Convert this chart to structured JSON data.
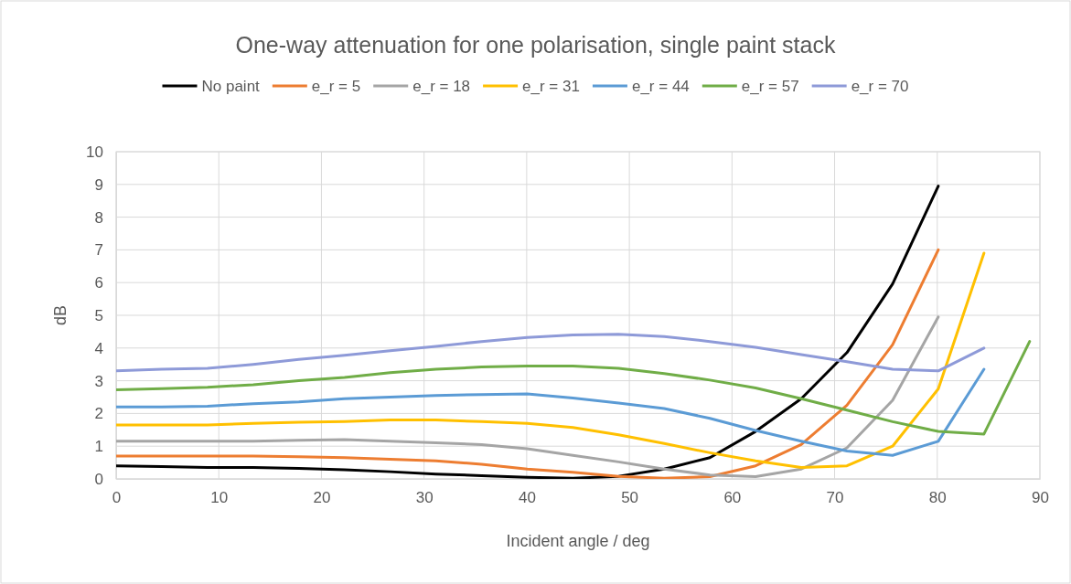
{
  "chart_data": {
    "type": "line",
    "title": "One-way attenuation for one polarisation, single paint stack",
    "xlabel": "Incident angle / deg",
    "ylabel": "dB",
    "x": [
      0,
      4.45,
      8.9,
      13.35,
      17.8,
      22.25,
      26.7,
      31.15,
      35.6,
      40.05,
      44.5,
      48.95,
      53.4,
      57.85,
      62.3,
      66.75,
      71.2,
      75.65,
      80.1,
      84.55,
      89
    ],
    "series": [
      {
        "name": "No paint",
        "color": "#000000",
        "values": [
          0.4,
          0.38,
          0.35,
          0.35,
          0.32,
          0.28,
          0.22,
          0.15,
          0.1,
          0.05,
          0.02,
          0.08,
          0.3,
          0.65,
          1.45,
          2.45,
          3.86,
          5.96,
          8.95,
          null,
          null
        ]
      },
      {
        "name": "e_r = 5",
        "color": "#ed7d31",
        "values": [
          0.7,
          0.7,
          0.7,
          0.7,
          0.68,
          0.65,
          0.6,
          0.55,
          0.45,
          0.3,
          0.2,
          0.08,
          0.02,
          0.07,
          0.4,
          1.05,
          2.25,
          4.1,
          7.0,
          null,
          null
        ]
      },
      {
        "name": "e_r = 18",
        "color": "#a5a5a5",
        "values": [
          1.15,
          1.15,
          1.15,
          1.15,
          1.18,
          1.2,
          1.15,
          1.1,
          1.05,
          0.92,
          0.72,
          0.52,
          0.3,
          0.12,
          0.07,
          0.3,
          0.95,
          2.4,
          4.95,
          null,
          null
        ]
      },
      {
        "name": "e_r = 31",
        "color": "#ffc000",
        "values": [
          1.65,
          1.65,
          1.65,
          1.7,
          1.73,
          1.75,
          1.8,
          1.8,
          1.75,
          1.7,
          1.57,
          1.35,
          1.08,
          0.8,
          0.55,
          0.35,
          0.4,
          1.0,
          2.75,
          6.9,
          null
        ]
      },
      {
        "name": "e_r = 44",
        "color": "#5b9bd5",
        "values": [
          2.2,
          2.2,
          2.22,
          2.3,
          2.35,
          2.45,
          2.5,
          2.55,
          2.58,
          2.6,
          2.47,
          2.32,
          2.15,
          1.85,
          1.48,
          1.15,
          0.85,
          0.72,
          1.15,
          3.35,
          null
        ]
      },
      {
        "name": "e_r = 57",
        "color": "#70ad47",
        "values": [
          2.72,
          2.76,
          2.8,
          2.88,
          3.0,
          3.1,
          3.25,
          3.35,
          3.42,
          3.45,
          3.45,
          3.38,
          3.22,
          3.02,
          2.78,
          2.45,
          2.1,
          1.75,
          1.45,
          1.37,
          4.2
        ]
      },
      {
        "name": "e_r = 70",
        "color": "#8e9ad8",
        "values": [
          3.3,
          3.35,
          3.38,
          3.5,
          3.65,
          3.78,
          3.92,
          4.05,
          4.2,
          4.32,
          4.4,
          4.42,
          4.35,
          4.2,
          4.02,
          3.8,
          3.58,
          3.35,
          3.3,
          4.0,
          null
        ]
      }
    ],
    "xlim": [
      0,
      90
    ],
    "xticks": [
      0,
      10,
      20,
      30,
      40,
      50,
      60,
      70,
      80,
      90
    ],
    "ylim": [
      0,
      10
    ],
    "yticks": [
      0,
      1,
      2,
      3,
      4,
      5,
      6,
      7,
      8,
      9,
      10
    ],
    "grid": true,
    "legend": "top",
    "marker": "none",
    "line_style": "solid"
  }
}
